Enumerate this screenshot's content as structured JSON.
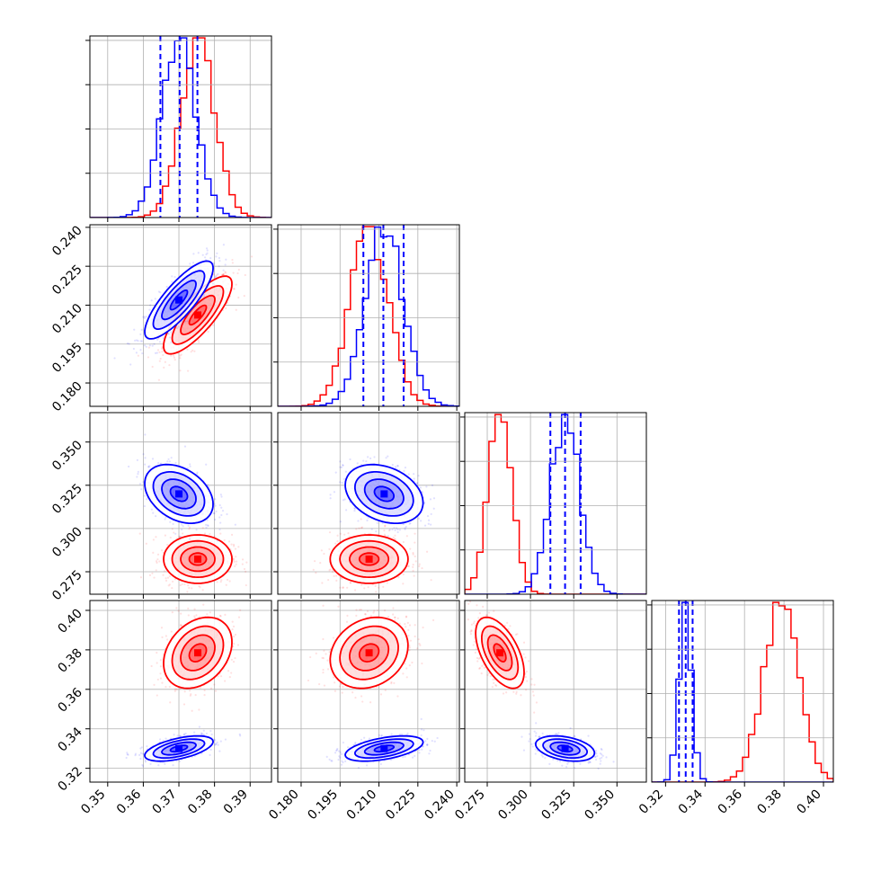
{
  "colors": {
    "series_a": "#ff0000",
    "series_b": "#0000ff",
    "grid": "#b0b0b0",
    "frame": "#000000"
  },
  "chart_data": {
    "type": "corner",
    "grid": true,
    "parameters": [
      {
        "range": [
          0.345,
          0.396
        ],
        "ticks": [
          "0.35",
          "0.36",
          "0.37",
          "0.38",
          "0.39"
        ]
      },
      {
        "range": [
          0.171,
          0.241
        ],
        "ticks": [
          "0.180",
          "0.195",
          "0.210",
          "0.225",
          "0.240"
        ]
      },
      {
        "range": [
          0.262,
          0.367
        ],
        "ticks": [
          "0.275",
          "0.300",
          "0.325",
          "0.350"
        ]
      },
      {
        "range": [
          0.313,
          0.405
        ],
        "ticks": [
          "0.32",
          "0.34",
          "0.36",
          "0.38",
          "0.40"
        ]
      }
    ],
    "series": [
      {
        "color": "red",
        "mean": [
          0.3753,
          0.2062,
          0.2823,
          0.3785
        ],
        "std": [
          0.0048,
          0.0075,
          0.007,
          0.009
        ],
        "correlation": [
          [
            1.0,
            0.8,
            0.0,
            0.3
          ],
          [
            0.8,
            1.0,
            0.0,
            0.2
          ],
          [
            0.0,
            0.0,
            1.0,
            -0.55
          ],
          [
            0.3,
            0.2,
            -0.55,
            1.0
          ]
        ]
      },
      {
        "color": "blue",
        "mean": [
          0.37,
          0.212,
          0.32,
          0.33
        ],
        "std": [
          0.0048,
          0.0075,
          0.0085,
          0.0032
        ],
        "correlation": [
          [
            1.0,
            0.82,
            -0.35,
            0.55
          ],
          [
            0.82,
            1.0,
            -0.3,
            0.5
          ],
          [
            -0.35,
            -0.3,
            1.0,
            -0.35
          ],
          [
            0.55,
            0.5,
            -0.35,
            1.0
          ]
        ]
      }
    ],
    "quantile_lines": {
      "color": "blue",
      "values": [
        [
          0.3648,
          0.3702,
          0.3752
        ],
        [
          0.204,
          0.2117,
          0.2195
        ],
        [
          0.3115,
          0.32,
          0.329
        ],
        [
          0.3268,
          0.3302,
          0.3337
        ]
      ]
    }
  }
}
